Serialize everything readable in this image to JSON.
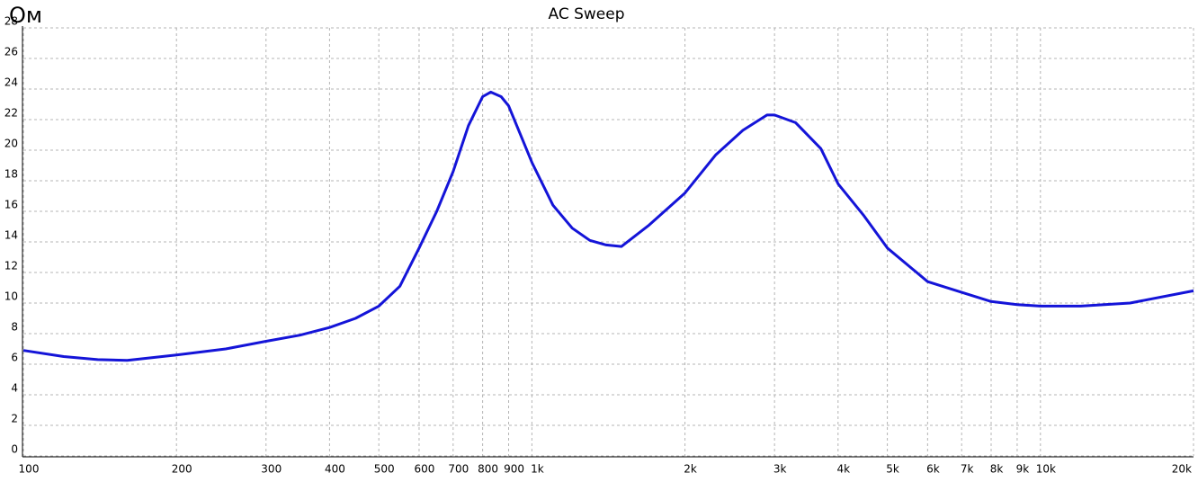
{
  "chart_data": {
    "type": "line",
    "title": "AC Sweep",
    "y_label": "Ом",
    "log_x": true,
    "grid": true,
    "xlim": [
      100,
      20000
    ],
    "xticks": [
      100,
      200,
      300,
      400,
      500,
      600,
      700,
      800,
      900,
      {
        "value": 1000,
        "label": "1k"
      },
      {
        "value": 2000,
        "label": "2k"
      },
      {
        "value": 3000,
        "label": "3k"
      },
      {
        "value": 4000,
        "label": "4k"
      },
      {
        "value": 5000,
        "label": "5k"
      },
      {
        "value": 6000,
        "label": "6k"
      },
      {
        "value": 7000,
        "label": "7k"
      },
      {
        "value": 8000,
        "label": "8k"
      },
      {
        "value": 9000,
        "label": "9k"
      },
      {
        "value": 10000,
        "label": "10k"
      },
      {
        "value": 20000,
        "label": "20k"
      }
    ],
    "ylim": [
      0,
      28
    ],
    "yticks": [
      0,
      2,
      4,
      6,
      8,
      10,
      12,
      14,
      16,
      18,
      20,
      22,
      24,
      26,
      28
    ],
    "x": [
      100,
      120,
      140,
      160,
      200,
      250,
      300,
      350,
      400,
      450,
      500,
      550,
      600,
      650,
      700,
      750,
      800,
      830,
      870,
      900,
      1000,
      1100,
      1200,
      1300,
      1400,
      1500,
      1700,
      2000,
      2300,
      2600,
      2900,
      3000,
      3300,
      3700,
      4000,
      4500,
      5000,
      6000,
      7000,
      8000,
      9000,
      10000,
      12000,
      15000,
      20000
    ],
    "series": [
      {
        "color": "#1414d8",
        "values": [
          6.9,
          6.5,
          6.3,
          6.25,
          6.6,
          7.0,
          7.5,
          7.9,
          8.4,
          9.0,
          9.8,
          11.1,
          13.6,
          16.0,
          18.6,
          21.6,
          23.5,
          23.8,
          23.5,
          22.9,
          19.2,
          16.4,
          14.9,
          14.1,
          13.8,
          13.7,
          15.1,
          17.2,
          19.7,
          21.3,
          22.3,
          22.3,
          21.8,
          20.1,
          17.8,
          15.7,
          13.6,
          11.4,
          10.7,
          10.1,
          9.9,
          9.8,
          9.8,
          10.0,
          10.8
        ]
      }
    ]
  }
}
